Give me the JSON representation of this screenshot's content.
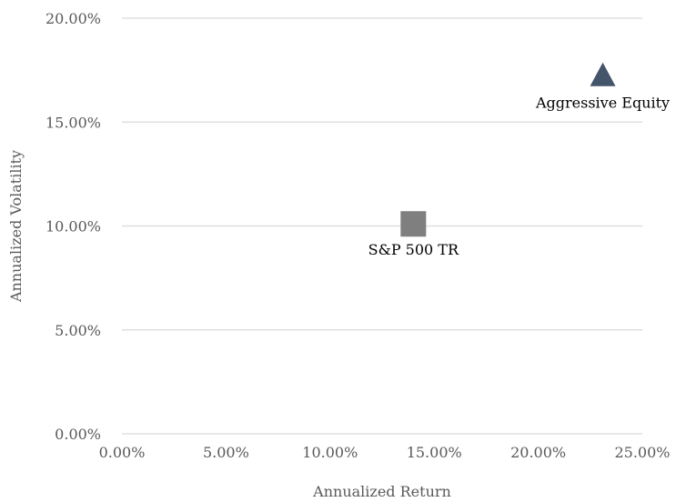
{
  "chart_data": {
    "type": "scatter",
    "title": "",
    "xlabel": "Annualized Return",
    "ylabel": "Annualized Volatility",
    "xlim": [
      0,
      25
    ],
    "ylim": [
      0,
      20
    ],
    "x_ticks": [
      "0.00%",
      "5.00%",
      "10.00%",
      "15.00%",
      "20.00%",
      "25.00%"
    ],
    "y_ticks": [
      "0.00%",
      "5.00%",
      "10.00%",
      "15.00%",
      "20.00%"
    ],
    "grid": "horizontal",
    "legend": "none",
    "points": [
      {
        "label": "S&P 500 TR",
        "x": 14.0,
        "y": 10.1,
        "marker": "square",
        "color": "#7f7f7f"
      },
      {
        "label": "Aggressive Equity",
        "x": 23.1,
        "y": 17.3,
        "marker": "triangle",
        "color": "#44546a"
      }
    ]
  },
  "colors": {
    "gridline": "#d9d9d9",
    "axis_text": "#595959"
  }
}
